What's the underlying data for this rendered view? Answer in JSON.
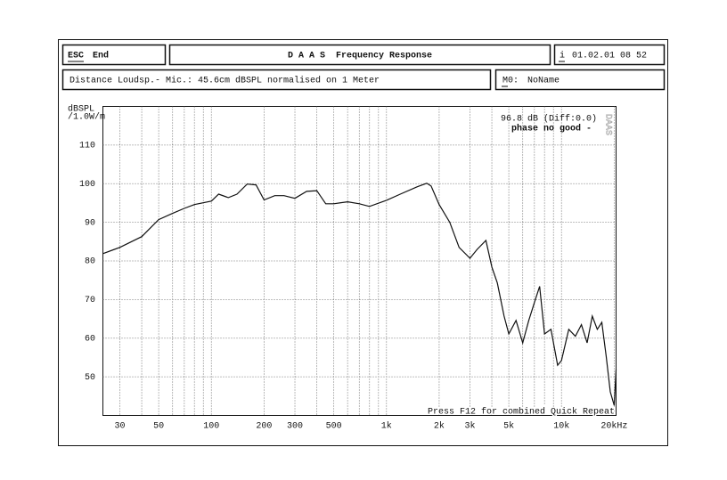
{
  "ui": {
    "esc_key": "ESC",
    "esc_action": "End",
    "title": "D A A S  Frequency Response",
    "info_key": "i",
    "datetime": "01.02.01 08 52",
    "distance_info": "Distance Loudsp.- Mic.: 45.6cm dBSPL normalised on 1 Meter",
    "mic_key": "M0:",
    "mic_name": "NoName"
  },
  "chart_data": {
    "type": "line",
    "xscale": "log",
    "grid": true,
    "color": "#111111",
    "y_label": [
      "dBSPL",
      "/1.0W/m"
    ],
    "annotations": [
      "96.8 dB (Diff:0.0)",
      "phase no good -",
      "Press F12 for combined Quick Repeat",
      "DAAS"
    ],
    "xlim": [
      24,
      20500
    ],
    "ylim": [
      40,
      120
    ],
    "xticks": [
      30,
      50,
      100,
      200,
      300,
      500,
      {
        "value": 1000,
        "label": "1k"
      },
      {
        "value": 2000,
        "label": "2k"
      },
      {
        "value": 3000,
        "label": "3k"
      },
      {
        "value": 5000,
        "label": "5k"
      },
      {
        "value": 10000,
        "label": "10k"
      },
      {
        "value": 20000,
        "label": "20kHz"
      }
    ],
    "x_minor_ticks": [
      40,
      60,
      70,
      80,
      90,
      400,
      600,
      700,
      800,
      900,
      4000,
      6000,
      7000,
      8000,
      9000
    ],
    "yticks": [
      50,
      60,
      70,
      80,
      90,
      100,
      110
    ],
    "x": [
      24,
      30,
      40,
      50,
      60,
      70,
      80,
      100,
      110,
      125,
      140,
      160,
      180,
      200,
      230,
      260,
      300,
      350,
      400,
      450,
      500,
      600,
      700,
      800,
      1000,
      1200,
      1500,
      1700,
      1800,
      2000,
      2300,
      2600,
      3000,
      3300,
      3700,
      4000,
      4300,
      4700,
      5000,
      5500,
      6000,
      6500,
      7000,
      7500,
      8000,
      8700,
      9500,
      10000,
      11000,
      12000,
      13000,
      14000,
      15000,
      16000,
      17000,
      18000,
      19000,
      20000,
      20500
    ],
    "values": [
      81.9,
      83.5,
      86.3,
      90.7,
      92.3,
      93.6,
      94.6,
      95.5,
      97.3,
      96.4,
      97.3,
      99.9,
      99.7,
      95.8,
      96.9,
      96.9,
      96.2,
      98.0,
      98.2,
      94.8,
      94.8,
      95.3,
      94.8,
      94.1,
      95.7,
      97.3,
      99.2,
      100.1,
      99.4,
      94.6,
      90.0,
      83.5,
      80.7,
      83.0,
      85.3,
      78.4,
      74.3,
      65.7,
      61.1,
      64.6,
      58.8,
      64.6,
      69.2,
      73.4,
      61.1,
      62.3,
      53.0,
      54.2,
      62.3,
      60.5,
      63.5,
      58.8,
      65.7,
      62.3,
      64.1,
      55.3,
      46.1,
      42.6,
      51.9
    ]
  }
}
